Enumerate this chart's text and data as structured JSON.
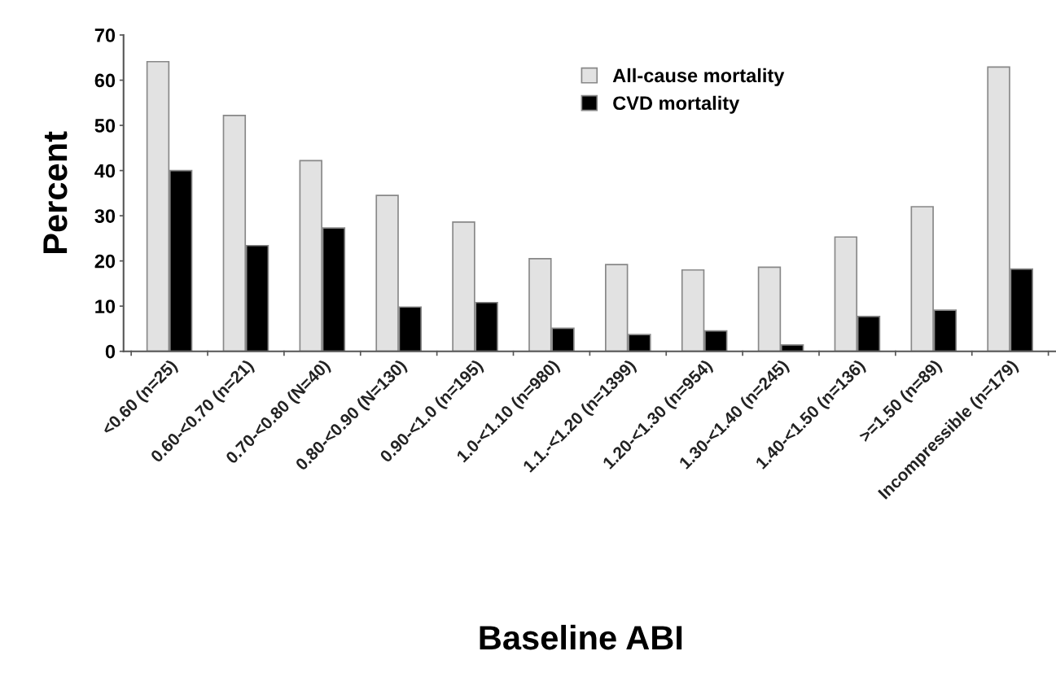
{
  "chart_data": {
    "type": "bar",
    "xlabel": "Baseline ABI",
    "ylabel": "Percent",
    "categories": [
      "<0.60 (n=25)",
      "0.60-<0.70 (n=21)",
      "0.70-<0.80 (N=40)",
      "0.80-<0.90 (N=130)",
      "0.90-<1.0 (n=195)",
      "1.0-<1.10 (n=980)",
      "1.1.-<1.20 (n=1399)",
      "1.20-<1.30 (n=954)",
      "1.30-<1.40 (n=245)",
      "1.40-<1.50 (n=136)",
      ">=1.50 (n=89)",
      "Incompressible (n=179)"
    ],
    "series": [
      {
        "name": "All-cause mortality",
        "color": "#e2e2e2",
        "values": [
          64.1,
          52.2,
          42.2,
          34.5,
          28.6,
          20.5,
          19.2,
          18.0,
          18.6,
          25.3,
          32.0,
          62.9
        ]
      },
      {
        "name": "CVD mortality",
        "color": "#000000",
        "values": [
          40.0,
          23.4,
          27.3,
          9.8,
          10.8,
          5.1,
          3.7,
          4.5,
          1.4,
          7.7,
          9.1,
          18.2
        ]
      }
    ],
    "ylim": [
      0,
      70
    ],
    "yticks": [
      0,
      10,
      20,
      30,
      40,
      50,
      60,
      70
    ],
    "grid": false,
    "legend": "top"
  }
}
